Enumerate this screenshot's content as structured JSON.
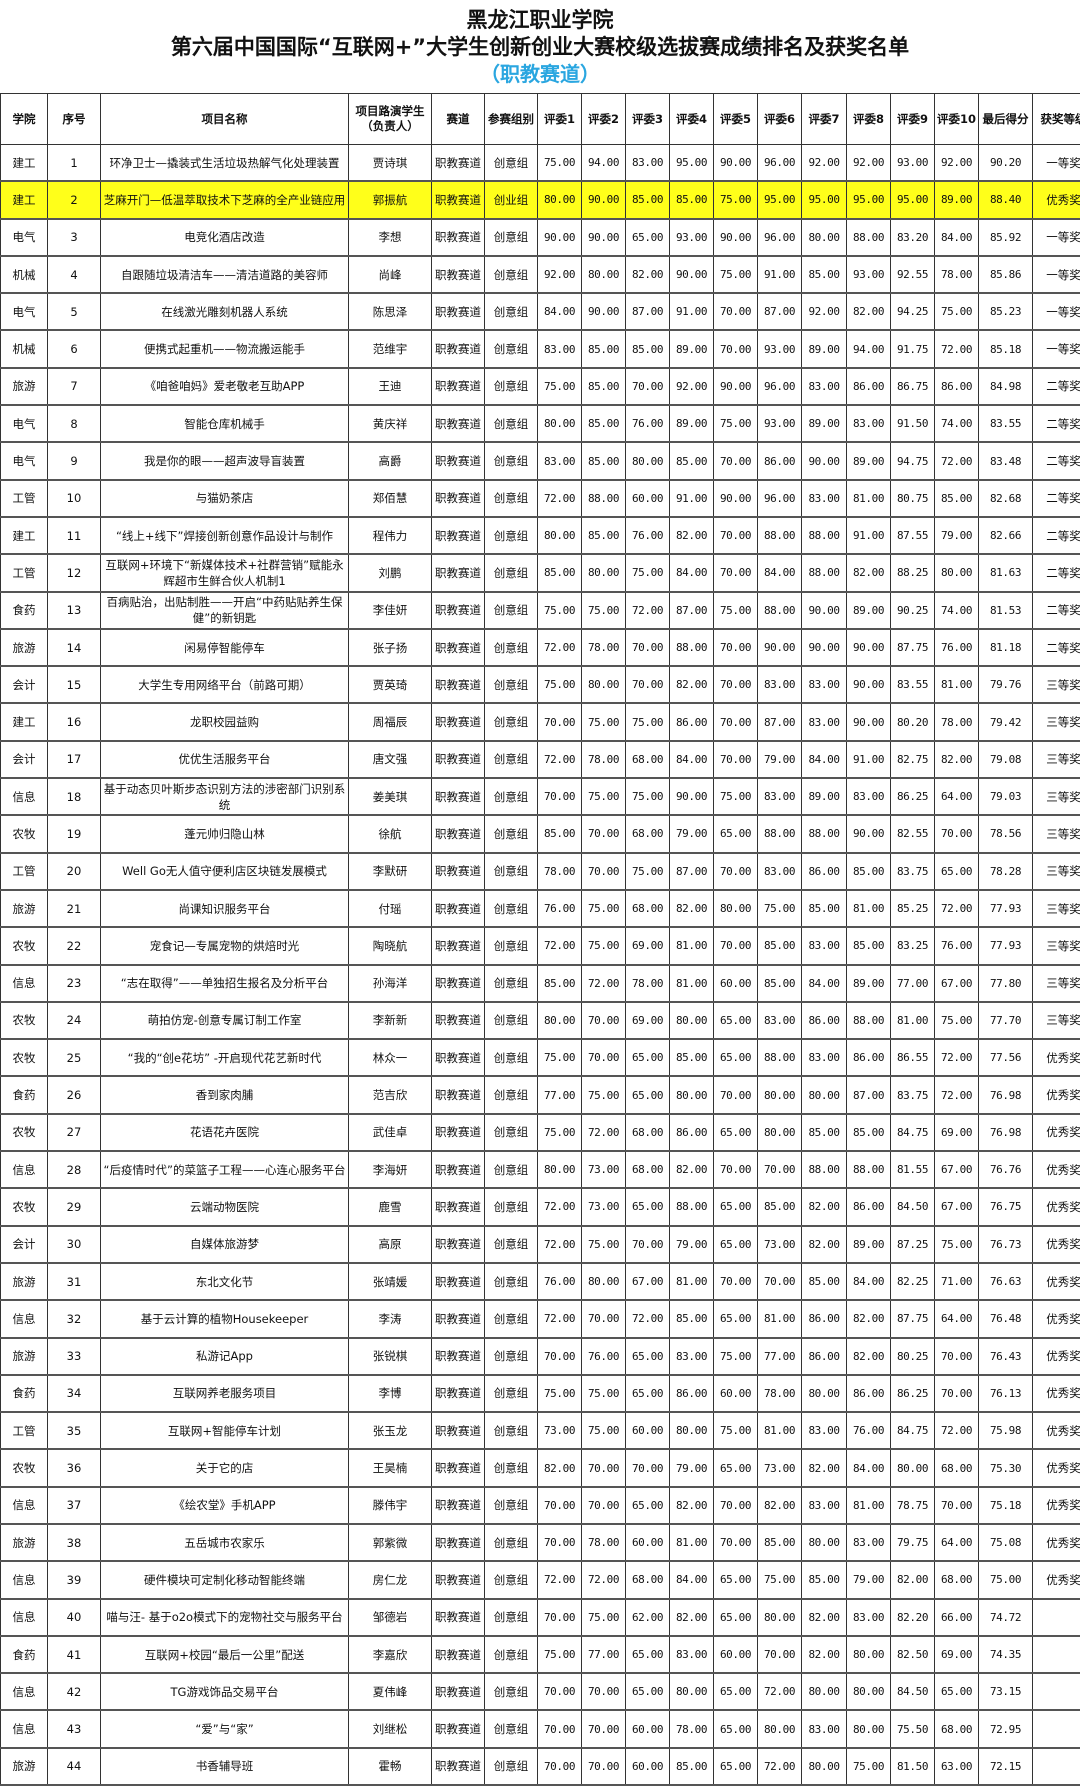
{
  "header": {
    "school": "黑龙江职业学院",
    "title": "第六届中国国际“互联网+”大学生创新创业大赛校级选拔赛成绩排名及获奖名单",
    "subtitle": "（职教赛道）"
  },
  "colors": {
    "subtitle": "#2aa6e0",
    "highlight": "#ffff1a"
  },
  "table": {
    "columns": [
      "学院",
      "序号",
      "项目名称",
      "项目路演学生（负责人）",
      "赛道",
      "参赛组别",
      "评委1",
      "评委2",
      "评委3",
      "评委4",
      "评委5",
      "评委6",
      "评委7",
      "评委8",
      "评委9",
      "评委10",
      "最后得分",
      "获奖等级"
    ],
    "highlighted_row": 2,
    "rows": [
      [
        "建工",
        "1",
        "环净卫士—撬装式生活垃圾热解气化处理装置",
        "贾诗琪",
        "职教赛道",
        "创意组",
        "75.00",
        "94.00",
        "83.00",
        "95.00",
        "90.00",
        "96.00",
        "92.00",
        "92.00",
        "93.00",
        "92.00",
        "90.20",
        "一等奖"
      ],
      [
        "建工",
        "2",
        "芝麻开门—低温萃取技术下芝麻的全产业链应用",
        "郭振航",
        "职教赛道",
        "创业组",
        "80.00",
        "90.00",
        "85.00",
        "85.00",
        "75.00",
        "95.00",
        "95.00",
        "95.00",
        "95.00",
        "89.00",
        "88.40",
        "优秀奖"
      ],
      [
        "电气",
        "3",
        "电竞化酒店改造",
        "李想",
        "职教赛道",
        "创意组",
        "90.00",
        "90.00",
        "65.00",
        "93.00",
        "90.00",
        "96.00",
        "80.00",
        "88.00",
        "83.20",
        "84.00",
        "85.92",
        "一等奖"
      ],
      [
        "机械",
        "4",
        "自跟随垃圾清洁车——清洁道路的美容师",
        "尚峰",
        "职教赛道",
        "创意组",
        "92.00",
        "80.00",
        "82.00",
        "90.00",
        "75.00",
        "91.00",
        "85.00",
        "93.00",
        "92.55",
        "78.00",
        "85.86",
        "一等奖"
      ],
      [
        "电气",
        "5",
        "在线激光雕刻机器人系统",
        "陈思泽",
        "职教赛道",
        "创意组",
        "84.00",
        "90.00",
        "87.00",
        "91.00",
        "70.00",
        "87.00",
        "92.00",
        "82.00",
        "94.25",
        "75.00",
        "85.23",
        "一等奖"
      ],
      [
        "机械",
        "6",
        "便携式起重机——物流搬运能手",
        "范维宇",
        "职教赛道",
        "创意组",
        "83.00",
        "85.00",
        "85.00",
        "89.00",
        "70.00",
        "93.00",
        "89.00",
        "94.00",
        "91.75",
        "72.00",
        "85.18",
        "一等奖"
      ],
      [
        "旅游",
        "7",
        "《咱爸咱妈》爱老敬老互助APP",
        "王迪",
        "职教赛道",
        "创意组",
        "75.00",
        "85.00",
        "70.00",
        "92.00",
        "90.00",
        "96.00",
        "83.00",
        "86.00",
        "86.75",
        "86.00",
        "84.98",
        "二等奖"
      ],
      [
        "电气",
        "8",
        "智能仓库机械手",
        "黄庆祥",
        "职教赛道",
        "创意组",
        "80.00",
        "85.00",
        "76.00",
        "89.00",
        "75.00",
        "93.00",
        "89.00",
        "83.00",
        "91.50",
        "74.00",
        "83.55",
        "二等奖"
      ],
      [
        "电气",
        "9",
        "我是你的眼——超声波导盲装置",
        "高爵",
        "职教赛道",
        "创意组",
        "83.00",
        "85.00",
        "80.00",
        "85.00",
        "70.00",
        "86.00",
        "90.00",
        "89.00",
        "94.75",
        "72.00",
        "83.48",
        "二等奖"
      ],
      [
        "工管",
        "10",
        "与猫奶茶店",
        "郑佰慧",
        "职教赛道",
        "创意组",
        "72.00",
        "88.00",
        "60.00",
        "91.00",
        "90.00",
        "96.00",
        "83.00",
        "81.00",
        "80.75",
        "85.00",
        "82.68",
        "二等奖"
      ],
      [
        "建工",
        "11",
        "“线上+线下”焊接创新创意作品设计与制作",
        "程伟力",
        "职教赛道",
        "创意组",
        "80.00",
        "85.00",
        "76.00",
        "82.00",
        "70.00",
        "88.00",
        "88.00",
        "91.00",
        "87.55",
        "79.00",
        "82.66",
        "二等奖"
      ],
      [
        "工管",
        "12",
        "互联网+环境下“新媒体技术+社群营销”赋能永辉超市生鲜合伙人机制1",
        "刘鹏",
        "职教赛道",
        "创意组",
        "85.00",
        "80.00",
        "75.00",
        "84.00",
        "70.00",
        "84.00",
        "88.00",
        "82.00",
        "88.25",
        "80.00",
        "81.63",
        "二等奖"
      ],
      [
        "食药",
        "13",
        "百病贴治，出贴制胜——开启“中药贴贴养生保健”的新钥匙",
        "李佳妍",
        "职教赛道",
        "创意组",
        "75.00",
        "75.00",
        "72.00",
        "87.00",
        "75.00",
        "88.00",
        "90.00",
        "89.00",
        "90.25",
        "74.00",
        "81.53",
        "二等奖"
      ],
      [
        "旅游",
        "14",
        "闲易停智能停车",
        "张子扬",
        "职教赛道",
        "创意组",
        "72.00",
        "78.00",
        "70.00",
        "88.00",
        "70.00",
        "90.00",
        "90.00",
        "90.00",
        "87.75",
        "76.00",
        "81.18",
        "二等奖"
      ],
      [
        "会计",
        "15",
        "大学生专用网络平台（前路可期）",
        "贾英琦",
        "职教赛道",
        "创意组",
        "75.00",
        "80.00",
        "70.00",
        "82.00",
        "70.00",
        "83.00",
        "83.00",
        "90.00",
        "83.55",
        "81.00",
        "79.76",
        "三等奖"
      ],
      [
        "建工",
        "16",
        "龙职校园益购",
        "周福辰",
        "职教赛道",
        "创意组",
        "70.00",
        "75.00",
        "75.00",
        "86.00",
        "70.00",
        "87.00",
        "83.00",
        "90.00",
        "80.20",
        "78.00",
        "79.42",
        "三等奖"
      ],
      [
        "会计",
        "17",
        "优优生活服务平台",
        "唐文强",
        "职教赛道",
        "创意组",
        "72.00",
        "78.00",
        "68.00",
        "84.00",
        "70.00",
        "79.00",
        "84.00",
        "91.00",
        "82.75",
        "82.00",
        "79.08",
        "三等奖"
      ],
      [
        "信息",
        "18",
        "基于动态贝叶斯步态识别方法的涉密部门识别系统",
        "姜美琪",
        "职教赛道",
        "创意组",
        "70.00",
        "75.00",
        "75.00",
        "90.00",
        "75.00",
        "83.00",
        "89.00",
        "83.00",
        "86.25",
        "64.00",
        "79.03",
        "三等奖"
      ],
      [
        "农牧",
        "19",
        "蓬元帅归隐山林",
        "徐航",
        "职教赛道",
        "创意组",
        "85.00",
        "70.00",
        "68.00",
        "79.00",
        "65.00",
        "88.00",
        "88.00",
        "90.00",
        "82.55",
        "70.00",
        "78.56",
        "三等奖"
      ],
      [
        "工管",
        "20",
        "Well Go无人值守便利店区块链发展模式",
        "李默研",
        "职教赛道",
        "创意组",
        "78.00",
        "70.00",
        "75.00",
        "87.00",
        "70.00",
        "83.00",
        "86.00",
        "85.00",
        "83.75",
        "65.00",
        "78.28",
        "三等奖"
      ],
      [
        "旅游",
        "21",
        "尚课知识服务平台",
        "付瑶",
        "职教赛道",
        "创意组",
        "76.00",
        "75.00",
        "68.00",
        "82.00",
        "80.00",
        "75.00",
        "85.00",
        "81.00",
        "85.25",
        "72.00",
        "77.93",
        "三等奖"
      ],
      [
        "农牧",
        "22",
        "宠食记—专属宠物的烘焙时光",
        "陶晓航",
        "职教赛道",
        "创意组",
        "72.00",
        "75.00",
        "69.00",
        "81.00",
        "70.00",
        "85.00",
        "83.00",
        "85.00",
        "83.25",
        "76.00",
        "77.93",
        "三等奖"
      ],
      [
        "信息",
        "23",
        "“志在取得”——单独招生报名及分析平台",
        "孙海洋",
        "职教赛道",
        "创意组",
        "85.00",
        "72.00",
        "78.00",
        "81.00",
        "60.00",
        "85.00",
        "84.00",
        "89.00",
        "77.00",
        "67.00",
        "77.80",
        "三等奖"
      ],
      [
        "农牧",
        "24",
        "萌拍仿宠-创意专属订制工作室",
        "李新新",
        "职教赛道",
        "创意组",
        "80.00",
        "70.00",
        "69.00",
        "80.00",
        "65.00",
        "83.00",
        "86.00",
        "88.00",
        "81.00",
        "75.00",
        "77.70",
        "三等奖"
      ],
      [
        "农牧",
        "25",
        "“我的“创e花坊” -开启现代花艺新时代",
        "林众一",
        "职教赛道",
        "创意组",
        "75.00",
        "70.00",
        "65.00",
        "85.00",
        "65.00",
        "88.00",
        "83.00",
        "86.00",
        "86.55",
        "72.00",
        "77.56",
        "优秀奖"
      ],
      [
        "食药",
        "26",
        "香到家肉脯",
        "范吉欣",
        "职教赛道",
        "创意组",
        "77.00",
        "75.00",
        "65.00",
        "80.00",
        "70.00",
        "80.00",
        "80.00",
        "87.00",
        "83.75",
        "72.00",
        "76.98",
        "优秀奖"
      ],
      [
        "农牧",
        "27",
        "花语花卉医院",
        "武佳卓",
        "职教赛道",
        "创意组",
        "75.00",
        "72.00",
        "68.00",
        "86.00",
        "65.00",
        "80.00",
        "85.00",
        "85.00",
        "84.75",
        "69.00",
        "76.98",
        "优秀奖"
      ],
      [
        "信息",
        "28",
        "“后疫情时代”的菜篮子工程——心连心服务平台",
        "李海妍",
        "职教赛道",
        "创意组",
        "80.00",
        "73.00",
        "68.00",
        "82.00",
        "70.00",
        "70.00",
        "88.00",
        "88.00",
        "81.55",
        "67.00",
        "76.76",
        "优秀奖"
      ],
      [
        "农牧",
        "29",
        "云端动物医院",
        "鹿雪",
        "职教赛道",
        "创意组",
        "72.00",
        "73.00",
        "65.00",
        "88.00",
        "65.00",
        "85.00",
        "82.00",
        "86.00",
        "84.50",
        "67.00",
        "76.75",
        "优秀奖"
      ],
      [
        "会计",
        "30",
        "自媒体旅游梦",
        "高原",
        "职教赛道",
        "创意组",
        "72.00",
        "75.00",
        "70.00",
        "79.00",
        "65.00",
        "73.00",
        "82.00",
        "89.00",
        "87.25",
        "75.00",
        "76.73",
        "优秀奖"
      ],
      [
        "旅游",
        "31",
        "东北文化节",
        "张靖媛",
        "职教赛道",
        "创意组",
        "76.00",
        "80.00",
        "67.00",
        "81.00",
        "70.00",
        "70.00",
        "85.00",
        "84.00",
        "82.25",
        "71.00",
        "76.63",
        "优秀奖"
      ],
      [
        "信息",
        "32",
        "基于云计算的植物Housekeeper",
        "李涛",
        "职教赛道",
        "创意组",
        "72.00",
        "70.00",
        "72.00",
        "85.00",
        "65.00",
        "81.00",
        "86.00",
        "82.00",
        "87.75",
        "64.00",
        "76.48",
        "优秀奖"
      ],
      [
        "旅游",
        "33",
        "私游记App",
        "张锐棋",
        "职教赛道",
        "创意组",
        "70.00",
        "76.00",
        "65.00",
        "83.00",
        "75.00",
        "77.00",
        "86.00",
        "82.00",
        "80.25",
        "70.00",
        "76.43",
        "优秀奖"
      ],
      [
        "食药",
        "34",
        "互联网养老服务项目",
        "李博",
        "职教赛道",
        "创意组",
        "75.00",
        "75.00",
        "65.00",
        "86.00",
        "60.00",
        "78.00",
        "80.00",
        "86.00",
        "86.25",
        "70.00",
        "76.13",
        "优秀奖"
      ],
      [
        "工管",
        "35",
        "互联网+智能停车计划",
        "张玉龙",
        "职教赛道",
        "创意组",
        "73.00",
        "75.00",
        "60.00",
        "80.00",
        "75.00",
        "81.00",
        "83.00",
        "76.00",
        "84.75",
        "72.00",
        "75.98",
        "优秀奖"
      ],
      [
        "农牧",
        "36",
        "关于它的店",
        "王昊楠",
        "职教赛道",
        "创意组",
        "82.00",
        "70.00",
        "70.00",
        "79.00",
        "65.00",
        "73.00",
        "82.00",
        "84.00",
        "80.00",
        "68.00",
        "75.30",
        "优秀奖"
      ],
      [
        "信息",
        "37",
        "《绘农堂》手机APP",
        "滕伟宇",
        "职教赛道",
        "创意组",
        "70.00",
        "70.00",
        "65.00",
        "82.00",
        "70.00",
        "82.00",
        "83.00",
        "81.00",
        "78.75",
        "70.00",
        "75.18",
        "优秀奖"
      ],
      [
        "旅游",
        "38",
        "五岳城市农家乐",
        "郭紫微",
        "职教赛道",
        "创意组",
        "70.00",
        "78.00",
        "60.00",
        "81.00",
        "70.00",
        "85.00",
        "80.00",
        "83.00",
        "79.75",
        "64.00",
        "75.08",
        "优秀奖"
      ],
      [
        "信息",
        "39",
        "硬件模块可定制化移动智能终端",
        "房仁龙",
        "职教赛道",
        "创意组",
        "72.00",
        "72.00",
        "68.00",
        "84.00",
        "65.00",
        "75.00",
        "85.00",
        "79.00",
        "82.00",
        "68.00",
        "75.00",
        "优秀奖"
      ],
      [
        "信息",
        "40",
        "喵与汪- 基于o2o模式下的宠物社交与服务平台",
        "邹德岩",
        "职教赛道",
        "创意组",
        "70.00",
        "75.00",
        "62.00",
        "82.00",
        "65.00",
        "80.00",
        "82.00",
        "83.00",
        "82.20",
        "66.00",
        "74.72",
        ""
      ],
      [
        "食药",
        "41",
        "互联网+校园“最后一公里”配送",
        "李嘉欣",
        "职教赛道",
        "创意组",
        "75.00",
        "77.00",
        "65.00",
        "83.00",
        "60.00",
        "70.00",
        "82.00",
        "80.00",
        "82.50",
        "69.00",
        "74.35",
        ""
      ],
      [
        "信息",
        "42",
        "TG游戏饰品交易平台",
        "夏伟峰",
        "职教赛道",
        "创意组",
        "70.00",
        "70.00",
        "65.00",
        "80.00",
        "65.00",
        "72.00",
        "80.00",
        "80.00",
        "84.50",
        "65.00",
        "73.15",
        ""
      ],
      [
        "信息",
        "43",
        "“爱”与“家”",
        "刘继松",
        "职教赛道",
        "创意组",
        "70.00",
        "70.00",
        "60.00",
        "78.00",
        "65.00",
        "80.00",
        "83.00",
        "80.00",
        "75.50",
        "68.00",
        "72.95",
        ""
      ],
      [
        "旅游",
        "44",
        "书香辅导班",
        "霍畅",
        "职教赛道",
        "创意组",
        "70.00",
        "70.00",
        "60.00",
        "85.00",
        "65.00",
        "72.00",
        "80.00",
        "75.00",
        "81.50",
        "63.00",
        "72.15",
        ""
      ]
    ]
  }
}
